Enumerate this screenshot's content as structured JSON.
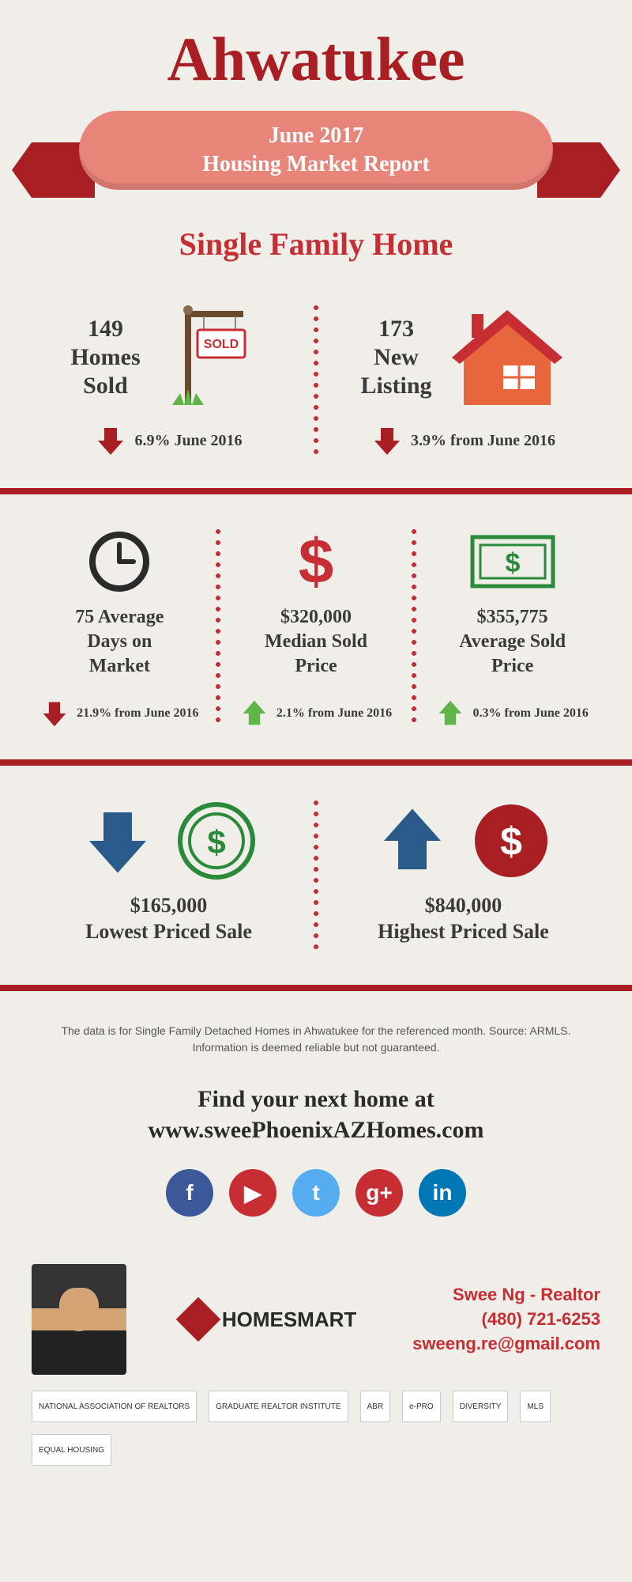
{
  "title": "Ahwatukee",
  "banner": {
    "line1": "June 2017",
    "line2": "Housing Market Report"
  },
  "subtitle": "Single Family Home",
  "colors": {
    "primary_red": "#a91e23",
    "bright_red": "#c72e33",
    "salmon": "#e8857a",
    "green": "#5fb548",
    "dark_green": "#2a8a3a",
    "orange": "#e8663c",
    "text": "#3a3a3a",
    "bg": "#f0eee9"
  },
  "section1": {
    "left": {
      "value": "149",
      "line1": "Homes",
      "line2": "Sold",
      "change": "6.9% June 2016",
      "dir": "down"
    },
    "right": {
      "value": "173",
      "line1": "New",
      "line2": "Listing",
      "change": "3.9% from June 2016",
      "dir": "down"
    }
  },
  "section2": {
    "c1": {
      "title1": "75 Average",
      "title2": "Days on",
      "title3": "Market",
      "change": "21.9% from June 2016",
      "dir": "down"
    },
    "c2": {
      "title1": "$320,000",
      "title2": "Median Sold",
      "title3": "Price",
      "change": "2.1% from June 2016",
      "dir": "up"
    },
    "c3": {
      "title1": "$355,775",
      "title2": "Average Sold",
      "title3": "Price",
      "change": "0.3% from June 2016",
      "dir": "up"
    }
  },
  "section3": {
    "left": {
      "value": "$165,000",
      "label": "Lowest Priced Sale"
    },
    "right": {
      "value": "$840,000",
      "label": "Highest Priced Sale"
    }
  },
  "disclaimer": "The data is for Single Family Detached Homes in Ahwatukee for the referenced month. Source: ARMLS. Information is deemed reliable but not guaranteed.",
  "cta": {
    "line1": "Find your next home at",
    "line2": "www.sweePhoenixAZHomes.com"
  },
  "social": [
    {
      "name": "facebook",
      "glyph": "f",
      "bg": "#3b5998"
    },
    {
      "name": "youtube",
      "glyph": "▶",
      "bg": "#c72e33"
    },
    {
      "name": "twitter",
      "glyph": "t",
      "bg": "#55acee"
    },
    {
      "name": "google-plus",
      "glyph": "g+",
      "bg": "#c72e33"
    },
    {
      "name": "linkedin",
      "glyph": "in",
      "bg": "#0077b5"
    }
  ],
  "footer": {
    "brand": "HOMESMART",
    "contact": {
      "name": "Swee Ng - Realtor",
      "phone": "(480) 721-6253",
      "email": "sweeng.re@gmail.com"
    },
    "badges": [
      "NATIONAL ASSOCIATION OF REALTORS",
      "GRADUATE REALTOR INSTITUTE",
      "ABR",
      "e-PRO",
      "DIVERSITY",
      "MLS",
      "EQUAL HOUSING"
    ]
  }
}
